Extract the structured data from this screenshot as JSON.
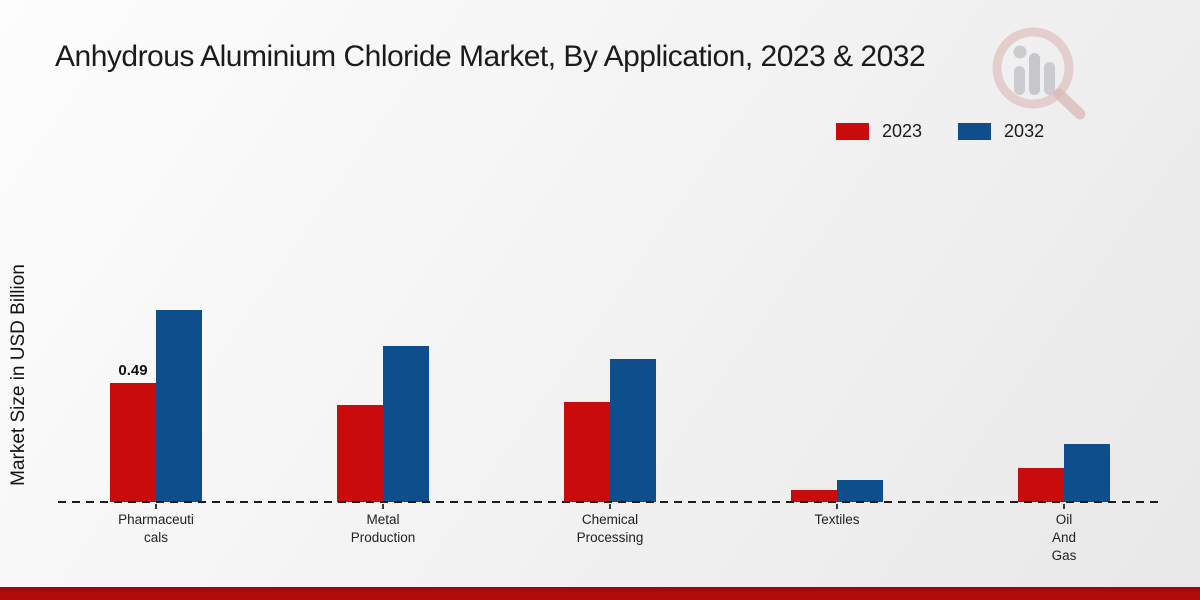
{
  "title": "Anhydrous Aluminium Chloride Market, By Application, 2023 & 2032",
  "y_axis_label": "Market Size in USD Billion",
  "legend": {
    "items": [
      {
        "label": "2023",
        "color": "#c90b0b"
      },
      {
        "label": "2032",
        "color": "#0f4e8c"
      }
    ]
  },
  "watermark_icon": "market-research-magnifier-logo",
  "colors": {
    "series_2023": "#c90b0b",
    "series_2032": "#0f4e8c",
    "axis_dashed_line": "#1c1c1c",
    "bottom_band": "#b00b0b",
    "background_light": "#fdfdfd",
    "background_dark": "#e8e8e8"
  },
  "chart_data": {
    "type": "bar",
    "title": "Anhydrous Aluminium Chloride Market, By Application, 2023 & 2032",
    "xlabel": "",
    "ylabel": "Market Size in USD Billion",
    "categories": [
      "Pharmaceuticals",
      "Metal Production",
      "Chemical Processing",
      "Textiles",
      "Oil And Gas"
    ],
    "category_label_lines": [
      [
        "Pharmaceuti",
        "cals"
      ],
      [
        "Metal",
        "Production"
      ],
      [
        "Chemical",
        "Processing"
      ],
      [
        "Textiles"
      ],
      [
        "Oil",
        "And",
        "Gas"
      ]
    ],
    "series": [
      {
        "name": "2023",
        "color": "#c90b0b",
        "values": [
          0.49,
          0.4,
          0.41,
          0.05,
          0.14
        ]
      },
      {
        "name": "2032",
        "color": "#0f4e8c",
        "values": [
          0.79,
          0.64,
          0.59,
          0.09,
          0.24
        ]
      }
    ],
    "annotations": [
      {
        "category": "Pharmaceuticals",
        "series": "2023",
        "text": "0.49"
      }
    ],
    "ylim": [
      0,
      0.9
    ],
    "grid": false,
    "y_tick_labels_visible": false,
    "legend_position": "top-right",
    "baseline_style": "dashed"
  }
}
